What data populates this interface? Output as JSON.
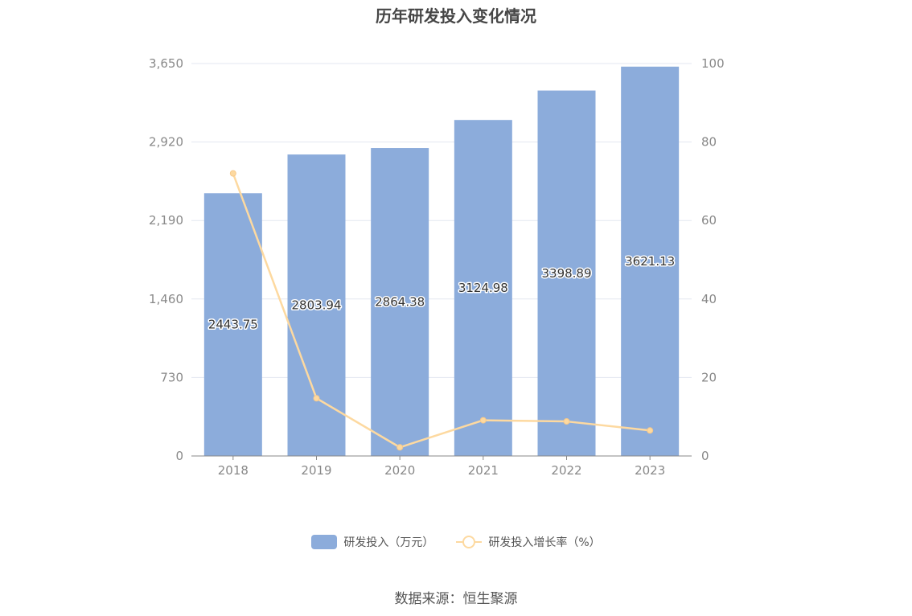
{
  "chart_data": {
    "type": "bar",
    "title": "历年研发投入变化情况",
    "categories": [
      "2018",
      "2019",
      "2020",
      "2021",
      "2022",
      "2023"
    ],
    "series": [
      {
        "name": "研发投入（万元）",
        "type": "bar",
        "axis": "left",
        "values": [
          2443.75,
          2803.94,
          2864.38,
          3124.98,
          3398.89,
          3621.13
        ],
        "color": "#8cacdb"
      },
      {
        "name": "研发投入增长率（%）",
        "type": "line",
        "axis": "right",
        "values": [
          72,
          14.7,
          2.2,
          9.1,
          8.8,
          6.5
        ],
        "color": "#fdd9a0"
      }
    ],
    "y_left": {
      "ylim": [
        0,
        3650
      ],
      "ticks": [
        "0",
        "730",
        "1,460",
        "2,190",
        "2,920",
        "3,650"
      ]
    },
    "y_right": {
      "ylim": [
        0,
        100
      ],
      "ticks": [
        "0",
        "20",
        "40",
        "60",
        "80",
        "100"
      ]
    },
    "grid": true,
    "legend": "bottom-center",
    "source": "数据来源：恒生聚源"
  }
}
